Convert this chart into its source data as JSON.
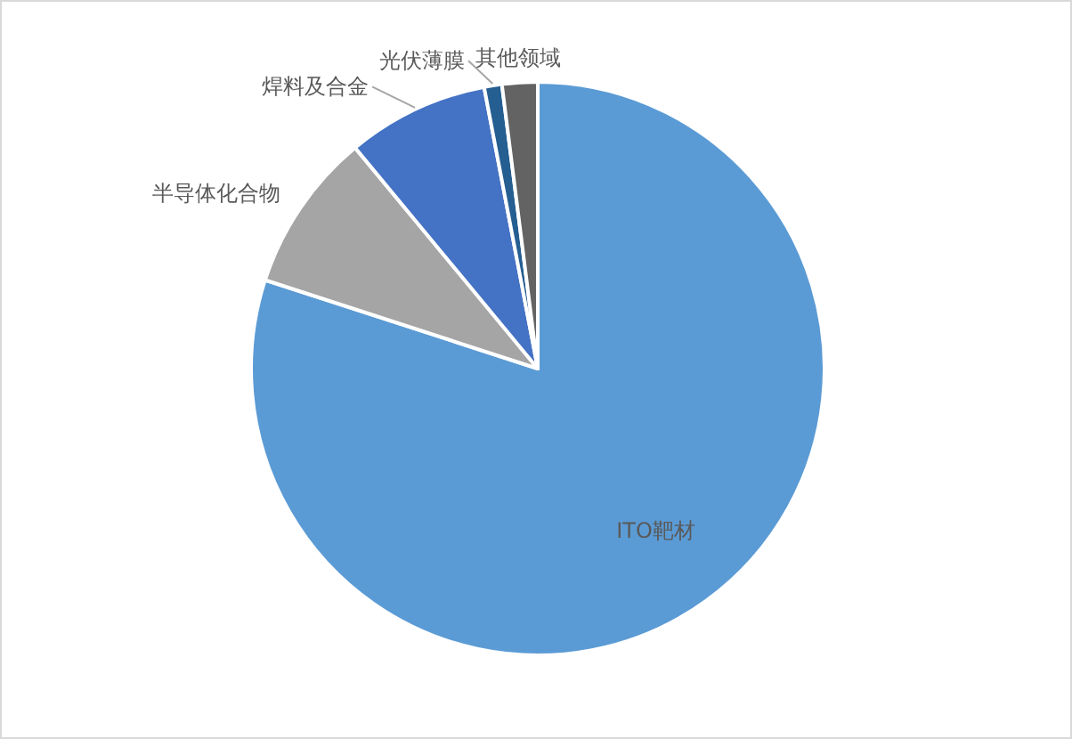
{
  "chart_data": {
    "type": "pie",
    "categories": [
      "ITO靶材",
      "半导体化合物",
      "焊料及合金",
      "光伏薄膜",
      "其他领域"
    ],
    "values": [
      80,
      9,
      8,
      1,
      2
    ],
    "colors": [
      "#5b9bd5",
      "#a5a5a5",
      "#4472c4",
      "#255e91",
      "#636363"
    ]
  }
}
